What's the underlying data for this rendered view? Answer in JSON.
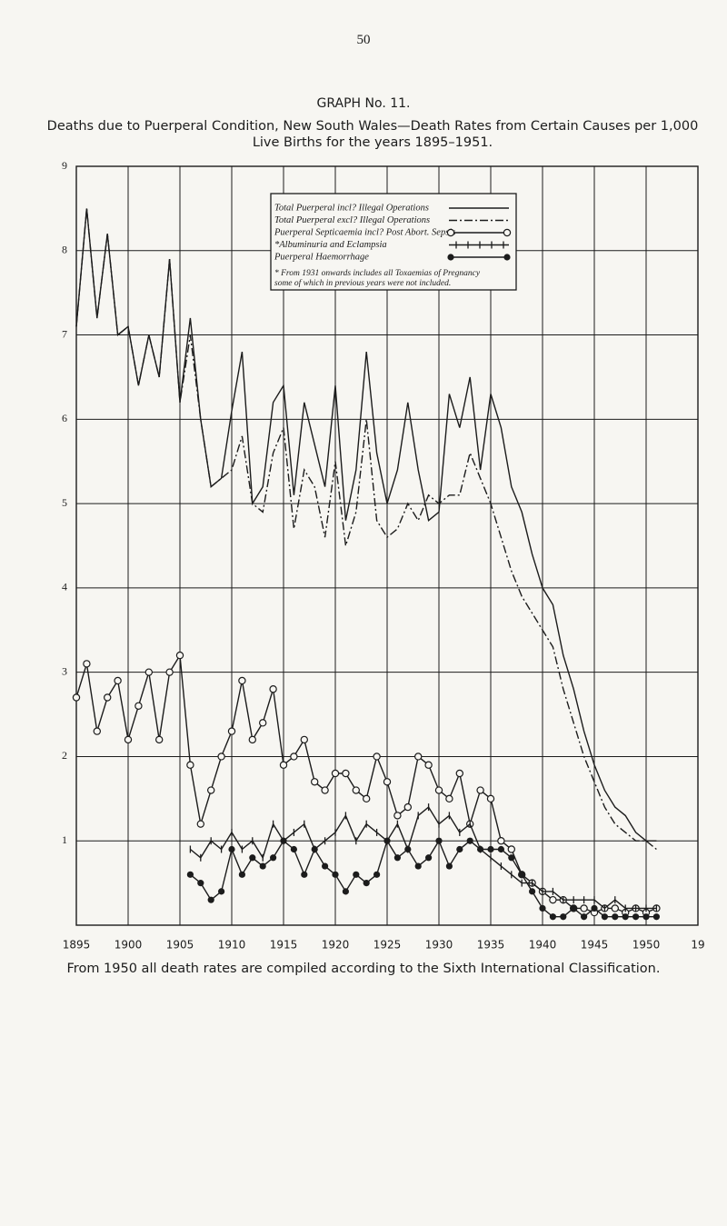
{
  "page_number": "50",
  "graph_label": "GRAPH No. 11.",
  "chart_data": {
    "type": "line",
    "title": "Deaths due to Puerperal Condition, New South Wales—Death Rates from Certain Causes per 1,000 Live Births for the years 1895–1951.",
    "footnote": "From 1950 all death rates are compiled according to the Sixth International Classification.",
    "legend_note": [
      "* From 1931 onwards includes all Toxaemias of Pregnancy",
      "some of which in previous years were not included."
    ],
    "legend_position": "top",
    "grid": true,
    "xlim": [
      1895,
      1955
    ],
    "xticks": [
      1895,
      1900,
      1905,
      1910,
      1915,
      1920,
      1925,
      1930,
      1935,
      1940,
      1945,
      1950,
      {
        "value": 1955,
        "label": "19"
      }
    ],
    "ylim": [
      0,
      9
    ],
    "yticks": [
      1,
      2,
      3,
      4,
      5,
      6,
      7,
      8,
      9
    ],
    "x": [
      1895,
      1896,
      1897,
      1898,
      1899,
      1900,
      1901,
      1902,
      1903,
      1904,
      1905,
      1906,
      1907,
      1908,
      1909,
      1910,
      1911,
      1912,
      1913,
      1914,
      1915,
      1916,
      1917,
      1918,
      1919,
      1920,
      1921,
      1922,
      1923,
      1924,
      1925,
      1926,
      1927,
      1928,
      1929,
      1930,
      1931,
      1932,
      1933,
      1934,
      1935,
      1936,
      1937,
      1938,
      1939,
      1940,
      1941,
      1942,
      1943,
      1944,
      1945,
      1946,
      1947,
      1948,
      1949,
      1950,
      1951
    ],
    "series": [
      {
        "name": "Total Puerperal incl? Illegal Operations",
        "color": "#1c1c1c",
        "line_style": "solid",
        "marker": "none",
        "values": [
          7.1,
          8.5,
          7.2,
          8.2,
          7.0,
          7.1,
          6.4,
          7.0,
          6.5,
          7.9,
          6.2,
          7.2,
          6.0,
          5.2,
          5.3,
          6.1,
          6.8,
          5.0,
          5.2,
          6.2,
          6.4,
          5.1,
          6.2,
          5.7,
          5.2,
          6.4,
          4.8,
          5.4,
          6.8,
          5.6,
          5.0,
          5.4,
          6.2,
          5.4,
          4.8,
          4.9,
          6.3,
          5.9,
          6.5,
          5.4,
          6.3,
          5.9,
          5.2,
          4.9,
          4.4,
          4.0,
          3.8,
          3.2,
          2.8,
          2.3,
          1.9,
          1.6,
          1.4,
          1.3,
          1.1,
          1.0,
          1.0
        ]
      },
      {
        "name": "Total Puerperal excl? Illegal Operations",
        "color": "#1c1c1c",
        "line_style": "dash-dot",
        "marker": "none",
        "values": [
          7.1,
          8.5,
          7.2,
          8.2,
          7.0,
          7.1,
          6.4,
          7.0,
          6.5,
          7.9,
          6.2,
          7.0,
          6.0,
          5.2,
          5.3,
          5.4,
          5.8,
          5.0,
          4.9,
          5.6,
          5.9,
          4.7,
          5.4,
          5.2,
          4.6,
          5.5,
          4.5,
          4.9,
          6.0,
          4.8,
          4.6,
          4.7,
          5.0,
          4.8,
          5.1,
          5.0,
          5.1,
          5.1,
          5.6,
          5.3,
          5.0,
          4.6,
          4.2,
          3.9,
          3.7,
          3.5,
          3.3,
          2.8,
          2.4,
          2.0,
          1.7,
          1.4,
          1.2,
          1.1,
          1.0,
          1.0,
          0.9
        ]
      },
      {
        "name": "Puerperal Septicaemia incl? Post Abort. Sepsis",
        "color": "#1c1c1c",
        "line_style": "solid",
        "marker": "open-circle",
        "values": [
          2.7,
          3.1,
          2.3,
          2.7,
          2.9,
          2.2,
          2.6,
          3.0,
          2.2,
          3.0,
          3.2,
          1.9,
          1.2,
          1.6,
          2.0,
          2.3,
          2.9,
          2.2,
          2.4,
          2.8,
          1.9,
          2.0,
          2.2,
          1.7,
          1.6,
          1.8,
          1.8,
          1.6,
          1.5,
          2.0,
          1.7,
          1.3,
          1.4,
          2.0,
          1.9,
          1.6,
          1.5,
          1.8,
          1.2,
          1.6,
          1.5,
          1.0,
          0.9,
          0.6,
          0.5,
          0.4,
          0.3,
          0.3,
          0.2,
          0.2,
          0.15,
          0.2,
          0.2,
          0.15,
          0.2,
          0.15,
          0.2
        ]
      },
      {
        "name": "*Albuminuria and Eclampsia",
        "color": "#1c1c1c",
        "line_style": "solid",
        "marker": "tick",
        "values": [
          null,
          null,
          null,
          null,
          null,
          null,
          null,
          null,
          null,
          null,
          null,
          0.9,
          0.8,
          1.0,
          0.9,
          1.1,
          0.9,
          1.0,
          0.8,
          1.2,
          1.0,
          1.1,
          1.2,
          0.9,
          1.0,
          1.1,
          1.3,
          1.0,
          1.2,
          1.1,
          1.0,
          1.2,
          0.9,
          1.3,
          1.4,
          1.2,
          1.3,
          1.1,
          1.2,
          0.9,
          0.8,
          0.7,
          0.6,
          0.5,
          0.5,
          0.4,
          0.4,
          0.3,
          0.3,
          0.3,
          0.3,
          0.2,
          0.3,
          0.2,
          0.2,
          0.2,
          0.2
        ]
      },
      {
        "name": "Puerperal Haemorrhage",
        "color": "#1c1c1c",
        "line_style": "solid",
        "marker": "filled-circle",
        "values": [
          null,
          null,
          null,
          null,
          null,
          null,
          null,
          null,
          null,
          null,
          null,
          0.6,
          0.5,
          0.3,
          0.4,
          0.9,
          0.6,
          0.8,
          0.7,
          0.8,
          1.0,
          0.9,
          0.6,
          0.9,
          0.7,
          0.6,
          0.4,
          0.6,
          0.5,
          0.6,
          1.0,
          0.8,
          0.9,
          0.7,
          0.8,
          1.0,
          0.7,
          0.9,
          1.0,
          0.9,
          0.9,
          0.9,
          0.8,
          0.6,
          0.4,
          0.2,
          0.1,
          0.1,
          0.2,
          0.1,
          0.2,
          0.1,
          0.1,
          0.1,
          0.1,
          0.1,
          0.1
        ]
      }
    ]
  }
}
